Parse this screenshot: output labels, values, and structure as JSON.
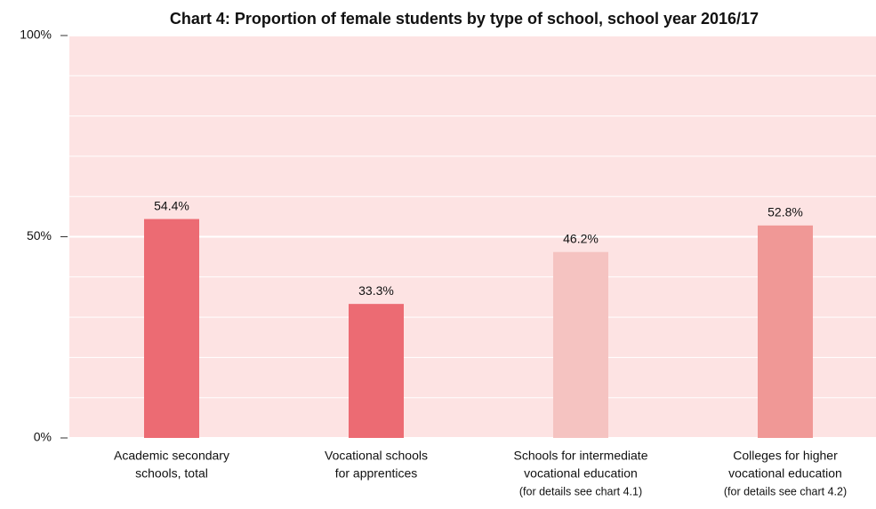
{
  "chart_data": {
    "type": "bar",
    "title": "Chart 4:  Proportion of female students by type of school, school year 2016/17",
    "categories": [
      [
        "Academic secondary",
        "schools, total"
      ],
      [
        "Vocational schools",
        "for apprentices"
      ],
      [
        "Schools for intermediate",
        "vocational education",
        "(for details see chart 4.1)"
      ],
      [
        "Colleges for higher",
        "vocational education",
        "(for details see chart 4.2)"
      ]
    ],
    "values": [
      54.4,
      33.3,
      46.2,
      52.8
    ],
    "value_labels": [
      "54.4%",
      "33.3%",
      "46.2%",
      "52.8%"
    ],
    "colors": [
      "#ec6b73",
      "#ec6b73",
      "#f5c3c1",
      "#f09896"
    ],
    "ylim": [
      0,
      100
    ],
    "yticks": [
      {
        "value": 0,
        "label": "0%"
      },
      {
        "value": 50,
        "label": "50%"
      },
      {
        "value": 100,
        "label": "100%"
      }
    ],
    "grid_lines": [
      10,
      20,
      30,
      40,
      60,
      70,
      80,
      90
    ],
    "grid": true
  }
}
